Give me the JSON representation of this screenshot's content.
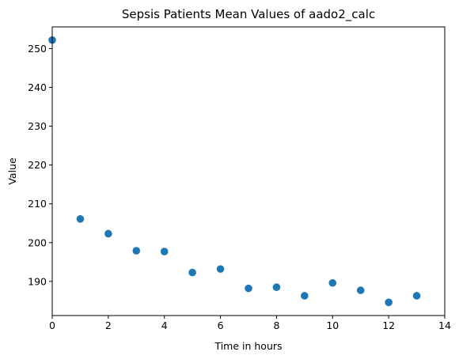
{
  "chart_data": {
    "type": "scatter",
    "title": "Sepsis Patients Mean Values of aado2_calc",
    "xlabel": "Time in hours",
    "ylabel": "Value",
    "xlim": [
      0,
      14
    ],
    "ylim": [
      181.2,
      255.6
    ],
    "xticks": [
      0,
      2,
      4,
      6,
      8,
      10,
      12,
      14
    ],
    "yticks": [
      190,
      200,
      210,
      220,
      230,
      240,
      250
    ],
    "grid": false,
    "marker_color": "#1f77b4",
    "x": [
      0,
      1,
      2,
      3,
      4,
      5,
      6,
      7,
      8,
      9,
      10,
      11,
      12,
      13
    ],
    "y": [
      252.2,
      206.1,
      202.3,
      197.9,
      197.7,
      192.3,
      193.2,
      188.2,
      188.5,
      186.3,
      189.6,
      187.7,
      184.6,
      186.3
    ]
  }
}
